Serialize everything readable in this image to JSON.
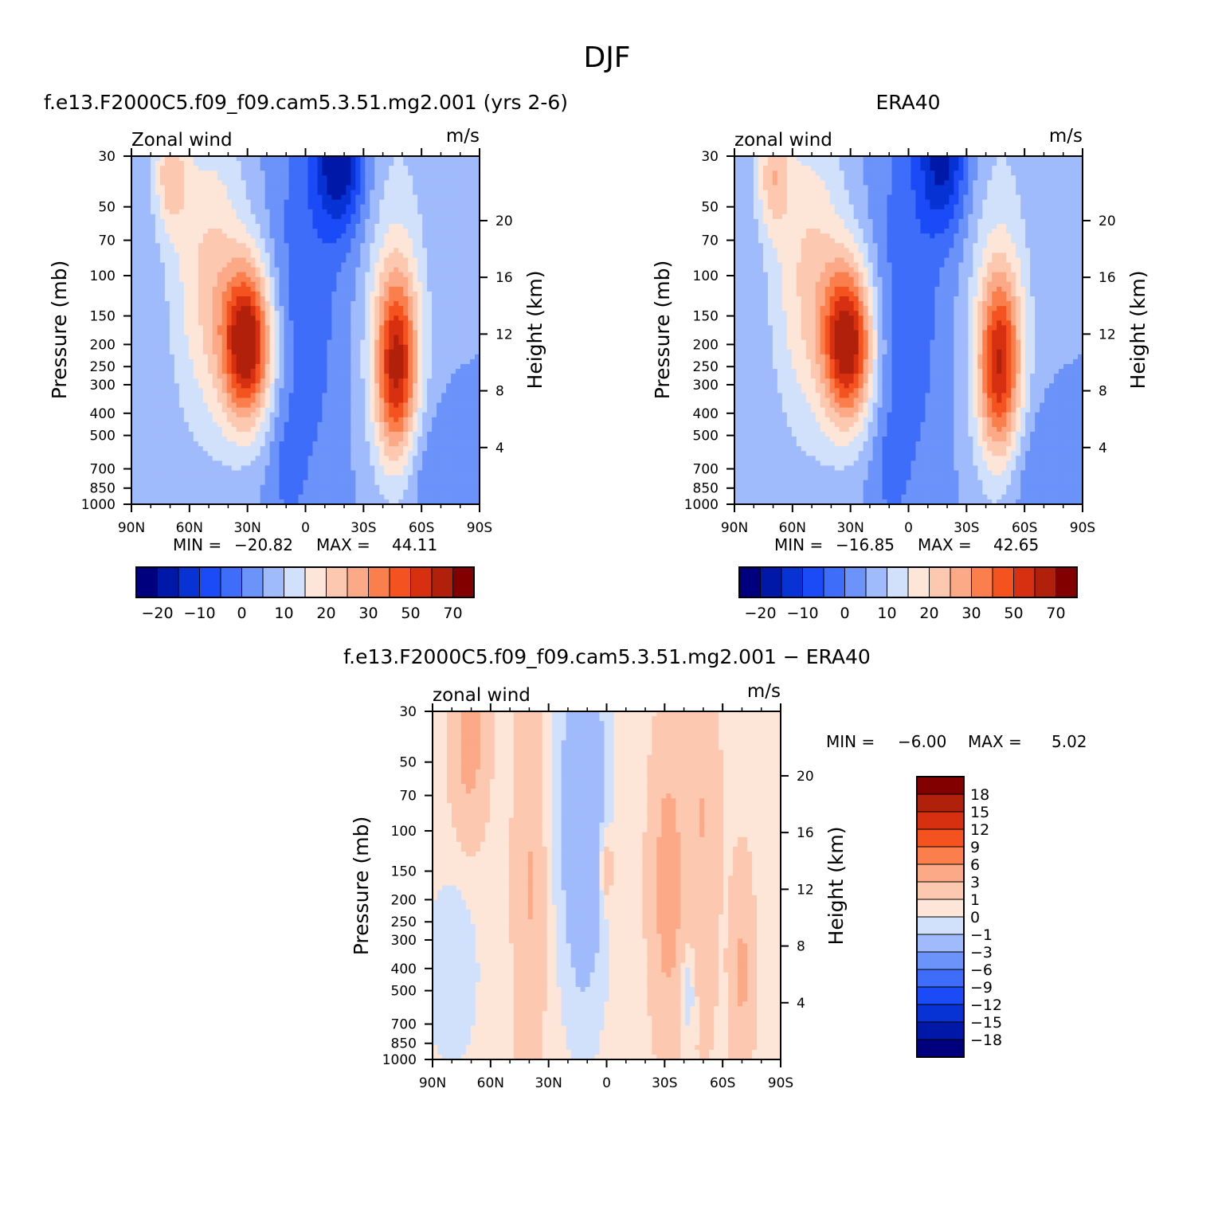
{
  "title": "DJF",
  "colors": {
    "model_palette": [
      "#00007f",
      "#0018a8",
      "#0732d4",
      "#1b4af7",
      "#3e6df9",
      "#6b93fa",
      "#a0bbfb",
      "#d1e1fc",
      "#fde6d8",
      "#fcc8b0",
      "#fba986",
      "#fa7f4d",
      "#f4521e",
      "#d73011",
      "#b1200a",
      "#820000"
    ],
    "diff_palette": [
      "#00007f",
      "#0018a8",
      "#0732d4",
      "#1b4af7",
      "#3e6df9",
      "#6b93fa",
      "#a0bbfb",
      "#d1e1fc",
      "#fde6d8",
      "#fcc8b0",
      "#fba986",
      "#fa7f4d",
      "#f4521e",
      "#d73011",
      "#b1200a",
      "#820000"
    ]
  },
  "chart_data": [
    {
      "type": "heatmap",
      "title": "f.e13.F2000C5.f09_f09.cam5.3.51.mg2.001 (yrs 2-6)",
      "left_label": "Zonal wind",
      "right_label": "m/s",
      "ylabel": "Pressure (mb)",
      "y2label": "Height (km)",
      "x_ticks": [
        "90N",
        "60N",
        "30N",
        "0",
        "30S",
        "60S",
        "90S"
      ],
      "y_ticks": [
        "30",
        "50",
        "70",
        "100",
        "150",
        "200",
        "250",
        "300",
        "400",
        "500",
        "700",
        "850",
        "1000"
      ],
      "y2_ticks": [
        "4",
        "8",
        "12",
        "16",
        "20"
      ],
      "min_label": "MIN =",
      "min_value": "−20.82",
      "max_label": "MAX =",
      "max_value": "44.11",
      "colorbar_labels": [
        "−20",
        "−10",
        "0",
        "10",
        "20",
        "30",
        "50",
        "70"
      ],
      "field": {
        "jets": [
          {
            "lat": 30,
            "p": 200,
            "peak": 44.11
          },
          {
            "lat": -47,
            "p": 250,
            "peak": 38
          }
        ],
        "min": {
          "lat": -18,
          "p": 30,
          "value": -20.82
        }
      }
    },
    {
      "type": "heatmap",
      "title": "ERA40",
      "left_label": "zonal wind",
      "right_label": "m/s",
      "ylabel": "Pressure (mb)",
      "y2label": "Height (km)",
      "x_ticks": [
        "90N",
        "60N",
        "30N",
        "0",
        "30S",
        "60S",
        "90S"
      ],
      "y_ticks": [
        "30",
        "50",
        "70",
        "100",
        "150",
        "200",
        "250",
        "300",
        "400",
        "500",
        "700",
        "850",
        "1000"
      ],
      "y2_ticks": [
        "4",
        "8",
        "12",
        "16",
        "20"
      ],
      "min_label": "MIN =",
      "min_value": "−16.85",
      "max_label": "MAX =",
      "max_value": "42.65",
      "colorbar_labels": [
        "−20",
        "−10",
        "0",
        "10",
        "20",
        "30",
        "50",
        "70"
      ],
      "field": {
        "jets": [
          {
            "lat": 31,
            "p": 200,
            "peak": 42.65
          },
          {
            "lat": -47,
            "p": 250,
            "peak": 36
          }
        ],
        "min": {
          "lat": -18,
          "p": 30,
          "value": -16.85
        }
      }
    },
    {
      "type": "heatmap",
      "title": "f.e13.F2000C5.f09_f09.cam5.3.51.mg2.001 − ERA40",
      "left_label": "zonal wind",
      "right_label": "m/s",
      "ylabel": "Pressure (mb)",
      "y2label": "Height (km)",
      "x_ticks": [
        "90N",
        "60N",
        "30N",
        "0",
        "30S",
        "60S",
        "90S"
      ],
      "y_ticks": [
        "30",
        "50",
        "70",
        "100",
        "150",
        "200",
        "250",
        "300",
        "400",
        "500",
        "700",
        "850",
        "1000"
      ],
      "y2_ticks": [
        "4",
        "8",
        "12",
        "16",
        "20"
      ],
      "min_label": "MIN =",
      "min_value": "−6.00",
      "max_label": "MAX =",
      "max_value": "5.02",
      "colorbar_labels": [
        "18",
        "15",
        "12",
        "9",
        "6",
        "3",
        "1",
        "0",
        "−1",
        "−3",
        "−6",
        "−9",
        "−12",
        "−15",
        "−18"
      ]
    }
  ]
}
